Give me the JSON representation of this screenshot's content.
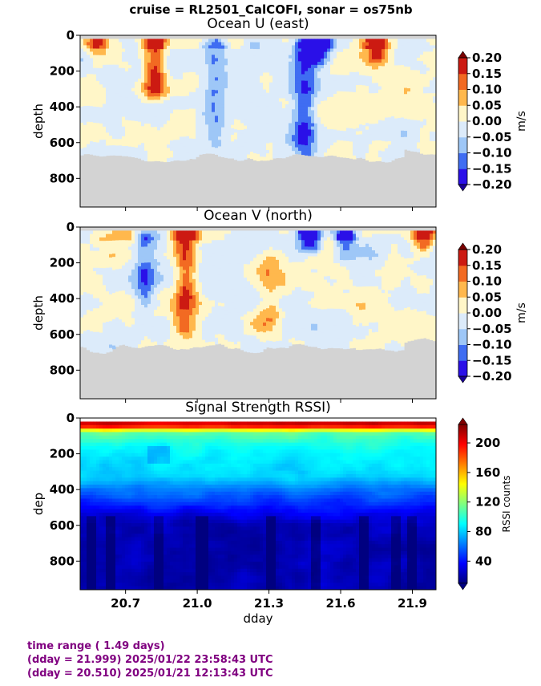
{
  "suptitle": "cruise = RL2501_CalCOFI,  sonar = os75nb",
  "footer": {
    "line1": "time range ( 1.49 days)",
    "line2": "(dday = 21.999) 2025/01/22 23:58:43 UTC",
    "line3": "(dday = 20.510) 2025/01/21 12:13:43 UTC"
  },
  "chart_data": [
    {
      "type": "heatmap",
      "title": "Ocean U (east)",
      "xlabel": "",
      "ylabel": "depth",
      "xlim": [
        20.51,
        21.999
      ],
      "ylim": [
        960,
        0
      ],
      "yticks": [
        0,
        200,
        400,
        600,
        800
      ],
      "xticks": [
        20.7,
        21.0,
        21.3,
        21.6,
        21.9
      ],
      "colorbar": {
        "label": "m/s",
        "levels": [
          -0.2,
          -0.15,
          -0.1,
          -0.05,
          0.0,
          0.05,
          0.1,
          0.15,
          0.2
        ],
        "ticklabels": [
          "0.20",
          "0.15",
          "0.10",
          "0.05",
          "0.00",
          "−0.05",
          "−0.10",
          "−0.15",
          "−0.20"
        ],
        "colors": [
          "#2a10e8",
          "#3f6df2",
          "#9ec7f7",
          "#dcebfa",
          "#fff6c8",
          "#ffb84d",
          "#f26a22",
          "#cc1a12"
        ]
      },
      "no_data_color": "#d3d3d3",
      "bottom_depth_approx": 680,
      "features": [
        {
          "x": 20.82,
          "depth_top": 40,
          "depth_bottom": 300,
          "value": 0.18
        },
        {
          "x": 21.45,
          "depth_top": 40,
          "depth_bottom": 650,
          "value": -0.14
        },
        {
          "x": 21.08,
          "depth_top": 40,
          "depth_bottom": 600,
          "value": -0.09
        },
        {
          "x": 21.52,
          "depth_top": 40,
          "depth_bottom": 120,
          "value": -0.2
        },
        {
          "x": 21.75,
          "depth_top": 40,
          "depth_bottom": 110,
          "value": 0.15
        },
        {
          "x": 20.58,
          "depth_top": 40,
          "depth_bottom": 90,
          "value": 0.12
        }
      ]
    },
    {
      "type": "heatmap",
      "title": "Ocean V (north)",
      "xlabel": "",
      "ylabel": "depth",
      "xlim": [
        20.51,
        21.999
      ],
      "ylim": [
        960,
        0
      ],
      "yticks": [
        0,
        200,
        400,
        600,
        800
      ],
      "xticks": [
        20.7,
        21.0,
        21.3,
        21.6,
        21.9
      ],
      "colorbar": {
        "label": "m/s",
        "levels": [
          -0.2,
          -0.15,
          -0.1,
          -0.05,
          0.0,
          0.05,
          0.1,
          0.15,
          0.2
        ],
        "ticklabels": [
          "0.20",
          "0.15",
          "0.10",
          "0.05",
          "0.00",
          "−0.05",
          "−0.10",
          "−0.15",
          "−0.20"
        ],
        "colors": [
          "#2a10e8",
          "#3f6df2",
          "#9ec7f7",
          "#dcebfa",
          "#fff6c8",
          "#ffb84d",
          "#f26a22",
          "#cc1a12"
        ]
      },
      "no_data_color": "#d3d3d3",
      "bottom_depth_approx": 680,
      "features": [
        {
          "x": 20.95,
          "depth_top": 40,
          "depth_bottom": 550,
          "value": 0.16
        },
        {
          "x": 20.78,
          "depth_top": 100,
          "depth_bottom": 400,
          "value": -0.12
        },
        {
          "x": 21.47,
          "depth_top": 40,
          "depth_bottom": 90,
          "value": -0.2
        },
        {
          "x": 21.62,
          "depth_top": 40,
          "depth_bottom": 120,
          "value": -0.15
        },
        {
          "x": 21.95,
          "depth_top": 40,
          "depth_bottom": 80,
          "value": 0.18
        },
        {
          "x": 21.3,
          "depth_top": 200,
          "depth_bottom": 500,
          "value": 0.08
        }
      ]
    },
    {
      "type": "heatmap",
      "title": "Signal Strength RSSI)",
      "xlabel": "dday",
      "ylabel": "dep",
      "xlim": [
        20.51,
        21.999
      ],
      "ylim": [
        960,
        0
      ],
      "yticks": [
        0,
        200,
        400,
        600,
        800
      ],
      "xticks": [
        20.7,
        21.0,
        21.3,
        21.6,
        21.9
      ],
      "xticklabels": [
        "20.7",
        "21.0",
        "21.3",
        "21.6",
        "21.9"
      ],
      "colorbar": {
        "label": "RSSI counts",
        "range": [
          10,
          225
        ],
        "ticks": [
          40,
          80,
          120,
          160,
          200
        ],
        "colormap": "jet"
      },
      "profile_depth_to_counts": [
        {
          "depth": 20,
          "counts": 215
        },
        {
          "depth": 50,
          "counts": 190
        },
        {
          "depth": 80,
          "counts": 110
        },
        {
          "depth": 150,
          "counts": 95
        },
        {
          "depth": 250,
          "counts": 85
        },
        {
          "depth": 330,
          "counts": 80
        },
        {
          "depth": 400,
          "counts": 60
        },
        {
          "depth": 480,
          "counts": 45
        },
        {
          "depth": 540,
          "counts": 30
        },
        {
          "depth": 600,
          "counts": 22
        },
        {
          "depth": 960,
          "counts": 20
        }
      ],
      "dark_columns_dday": [
        20.56,
        20.64,
        20.84,
        21.02,
        21.31,
        21.5,
        21.7,
        21.83,
        21.9
      ]
    }
  ]
}
